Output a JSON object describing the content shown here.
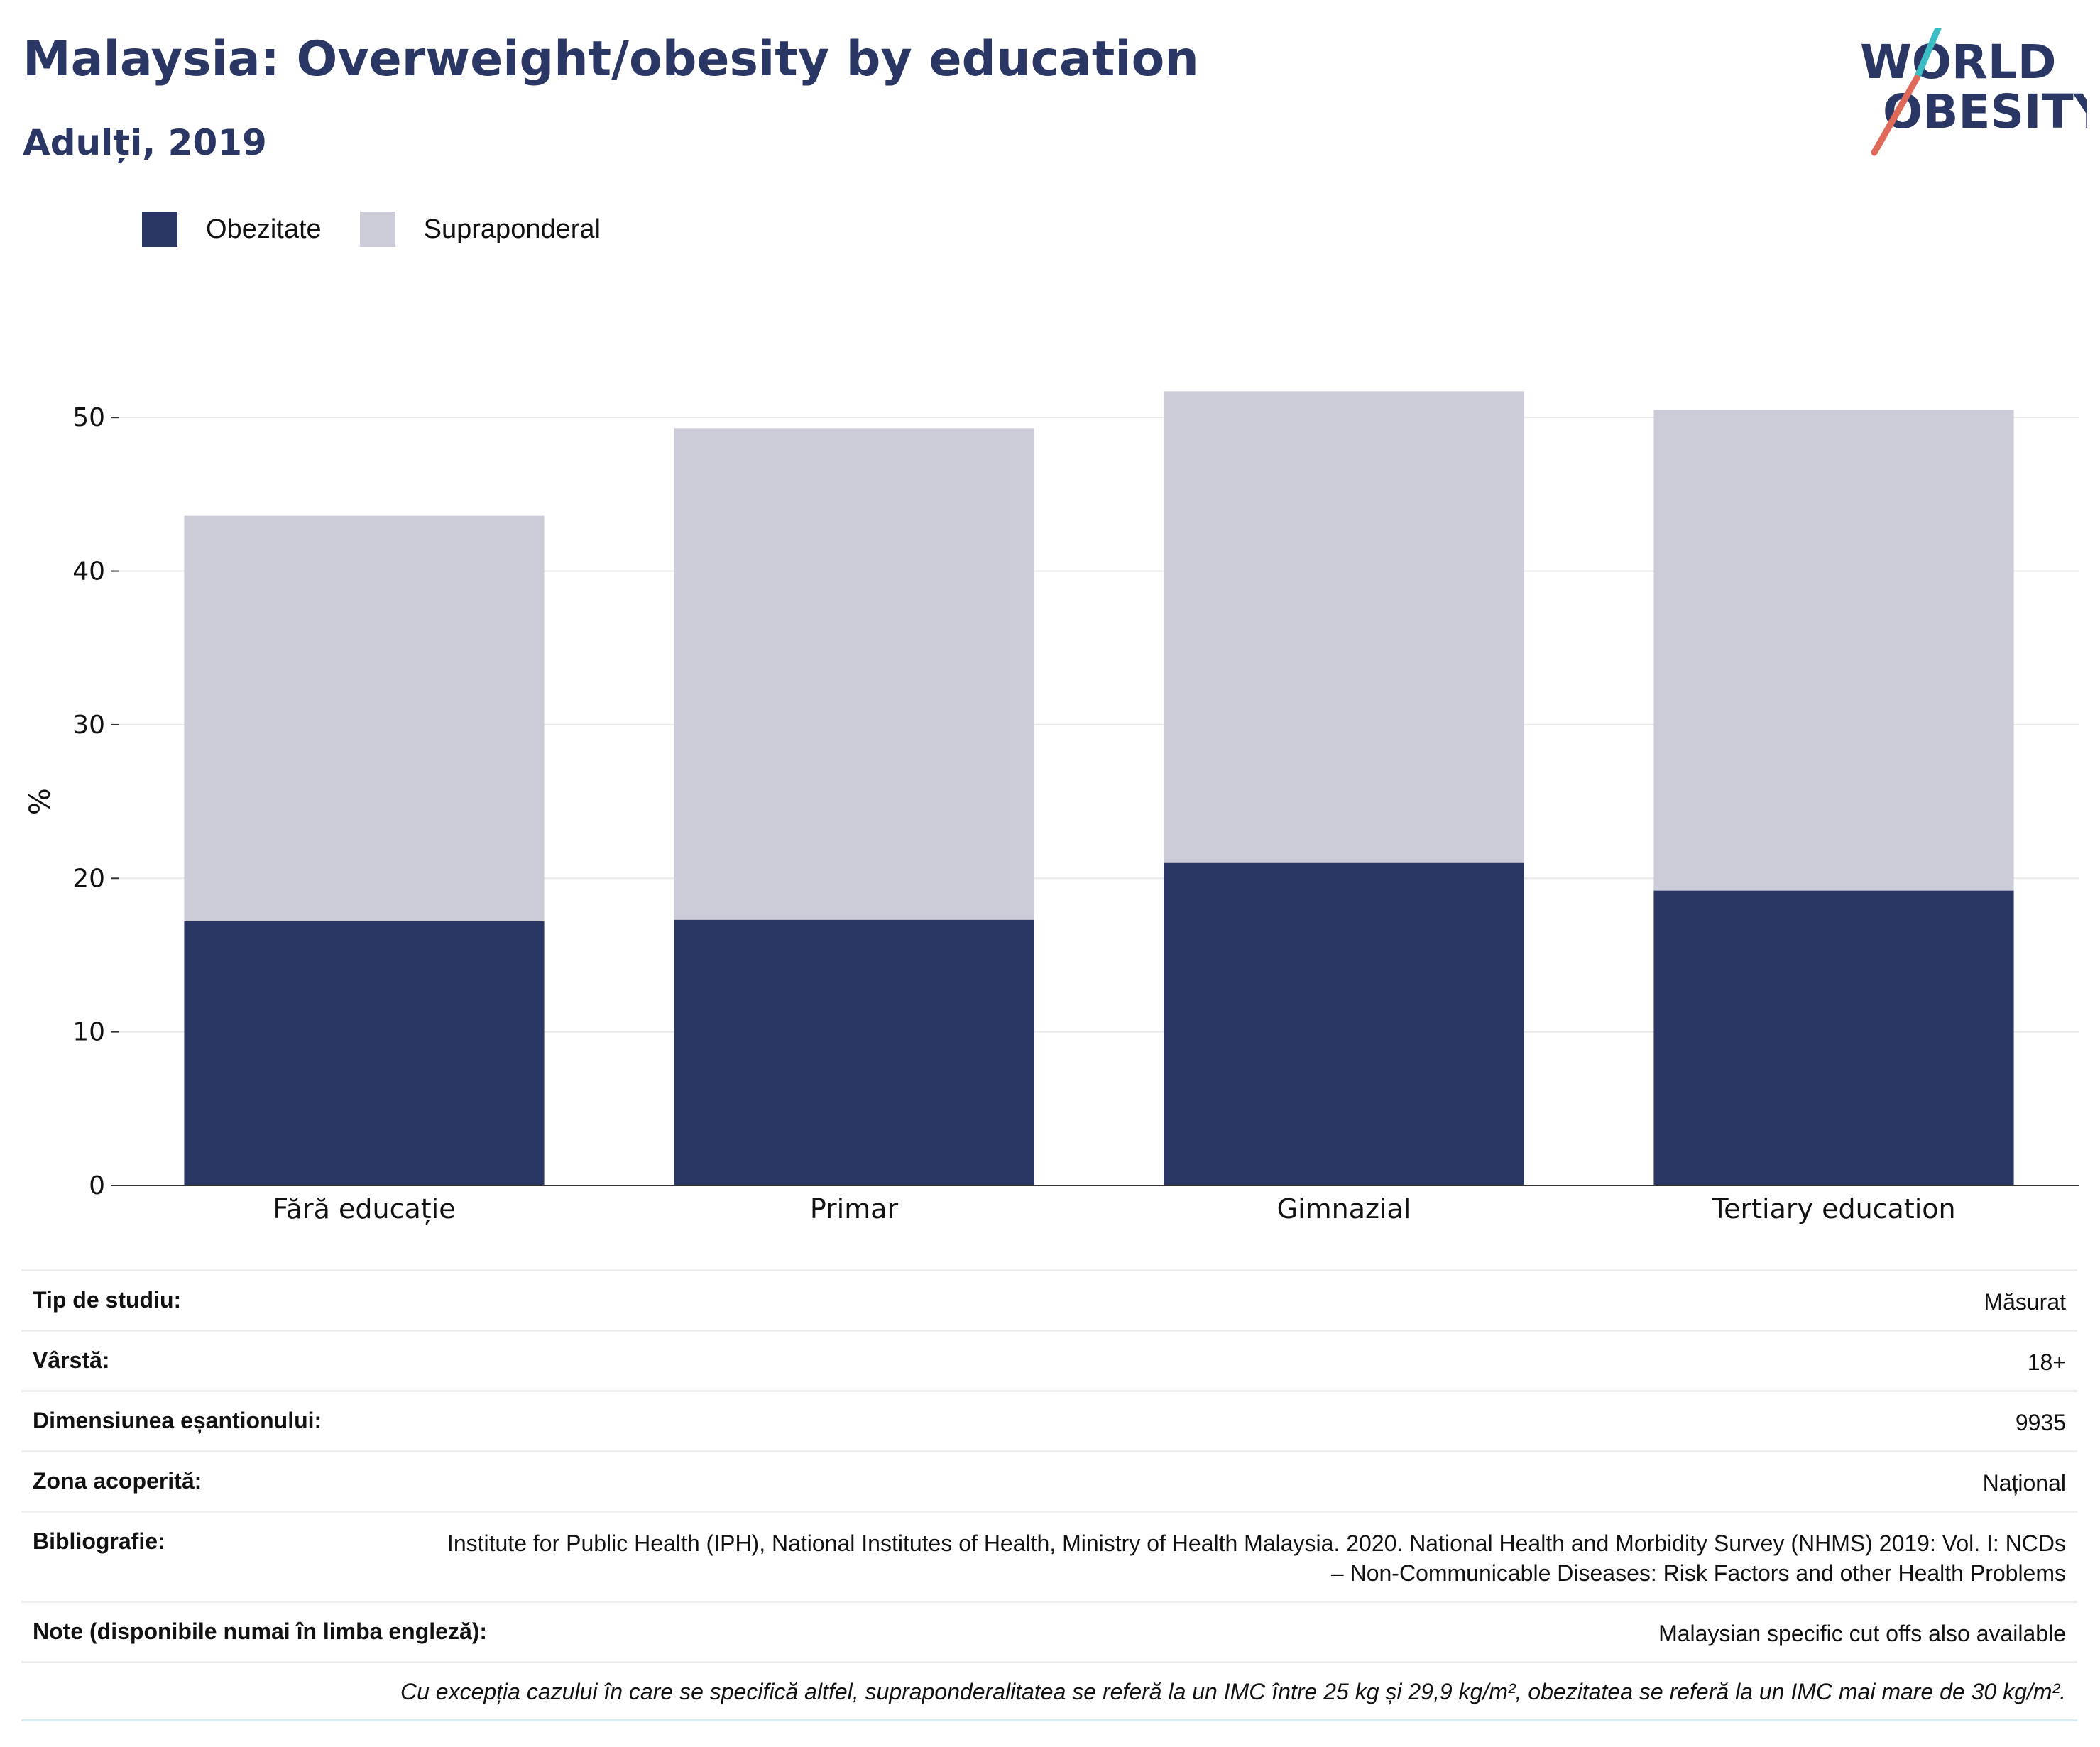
{
  "header": {
    "title": "Malaysia: Overweight/obesity by education",
    "subtitle": "Adulți, 2019",
    "logo_line1": "WORLD",
    "logo_line2": "OBESITY"
  },
  "legend": [
    {
      "label": "Obezitate",
      "color": "#2a3663"
    },
    {
      "label": "Supraponderal",
      "color": "#cbccd8"
    }
  ],
  "chart_data": {
    "type": "bar",
    "stacked": true,
    "categories": [
      "Fără educație",
      "Primar",
      "Gimnazial",
      "Tertiary education"
    ],
    "series": [
      {
        "name": "Obezitate",
        "color": "#2a3663",
        "values": [
          17.2,
          17.3,
          21.0,
          19.2
        ]
      },
      {
        "name": "Supraponderal",
        "color": "#cbccd8",
        "values": [
          26.4,
          32.0,
          30.7,
          31.3
        ]
      }
    ],
    "ylabel": "%",
    "ylim": [
      0,
      55
    ],
    "yticks": [
      0,
      10,
      20,
      30,
      40,
      50
    ],
    "grid": true,
    "legend_position": "top-left"
  },
  "meta": {
    "rows": [
      {
        "key": "Tip de studiu:",
        "value": "Măsurat"
      },
      {
        "key": "Vârstă:",
        "value": "18+"
      },
      {
        "key": "Dimensiunea eșantionului:",
        "value": "9935"
      },
      {
        "key": "Zona acoperită:",
        "value": "Național"
      },
      {
        "key": "Bibliografie:",
        "value": "Institute for Public Health (IPH), National Institutes of Health, Ministry of Health Malaysia. 2020. National Health and Morbidity Survey (NHMS) 2019: Vol. I: NCDs – Non-Communicable Diseases: Risk Factors and other Health Problems"
      },
      {
        "key": "Note (disponibile numai în limba engleză):",
        "value": "Malaysian specific cut offs also available"
      }
    ],
    "footnote": "Cu excepția cazului în care se specifică altfel, supraponderalitatea se referă la un IMC între 25 kg și 29,9 kg/m², obezitatea se referă la un IMC mai mare de 30 kg/m²."
  }
}
